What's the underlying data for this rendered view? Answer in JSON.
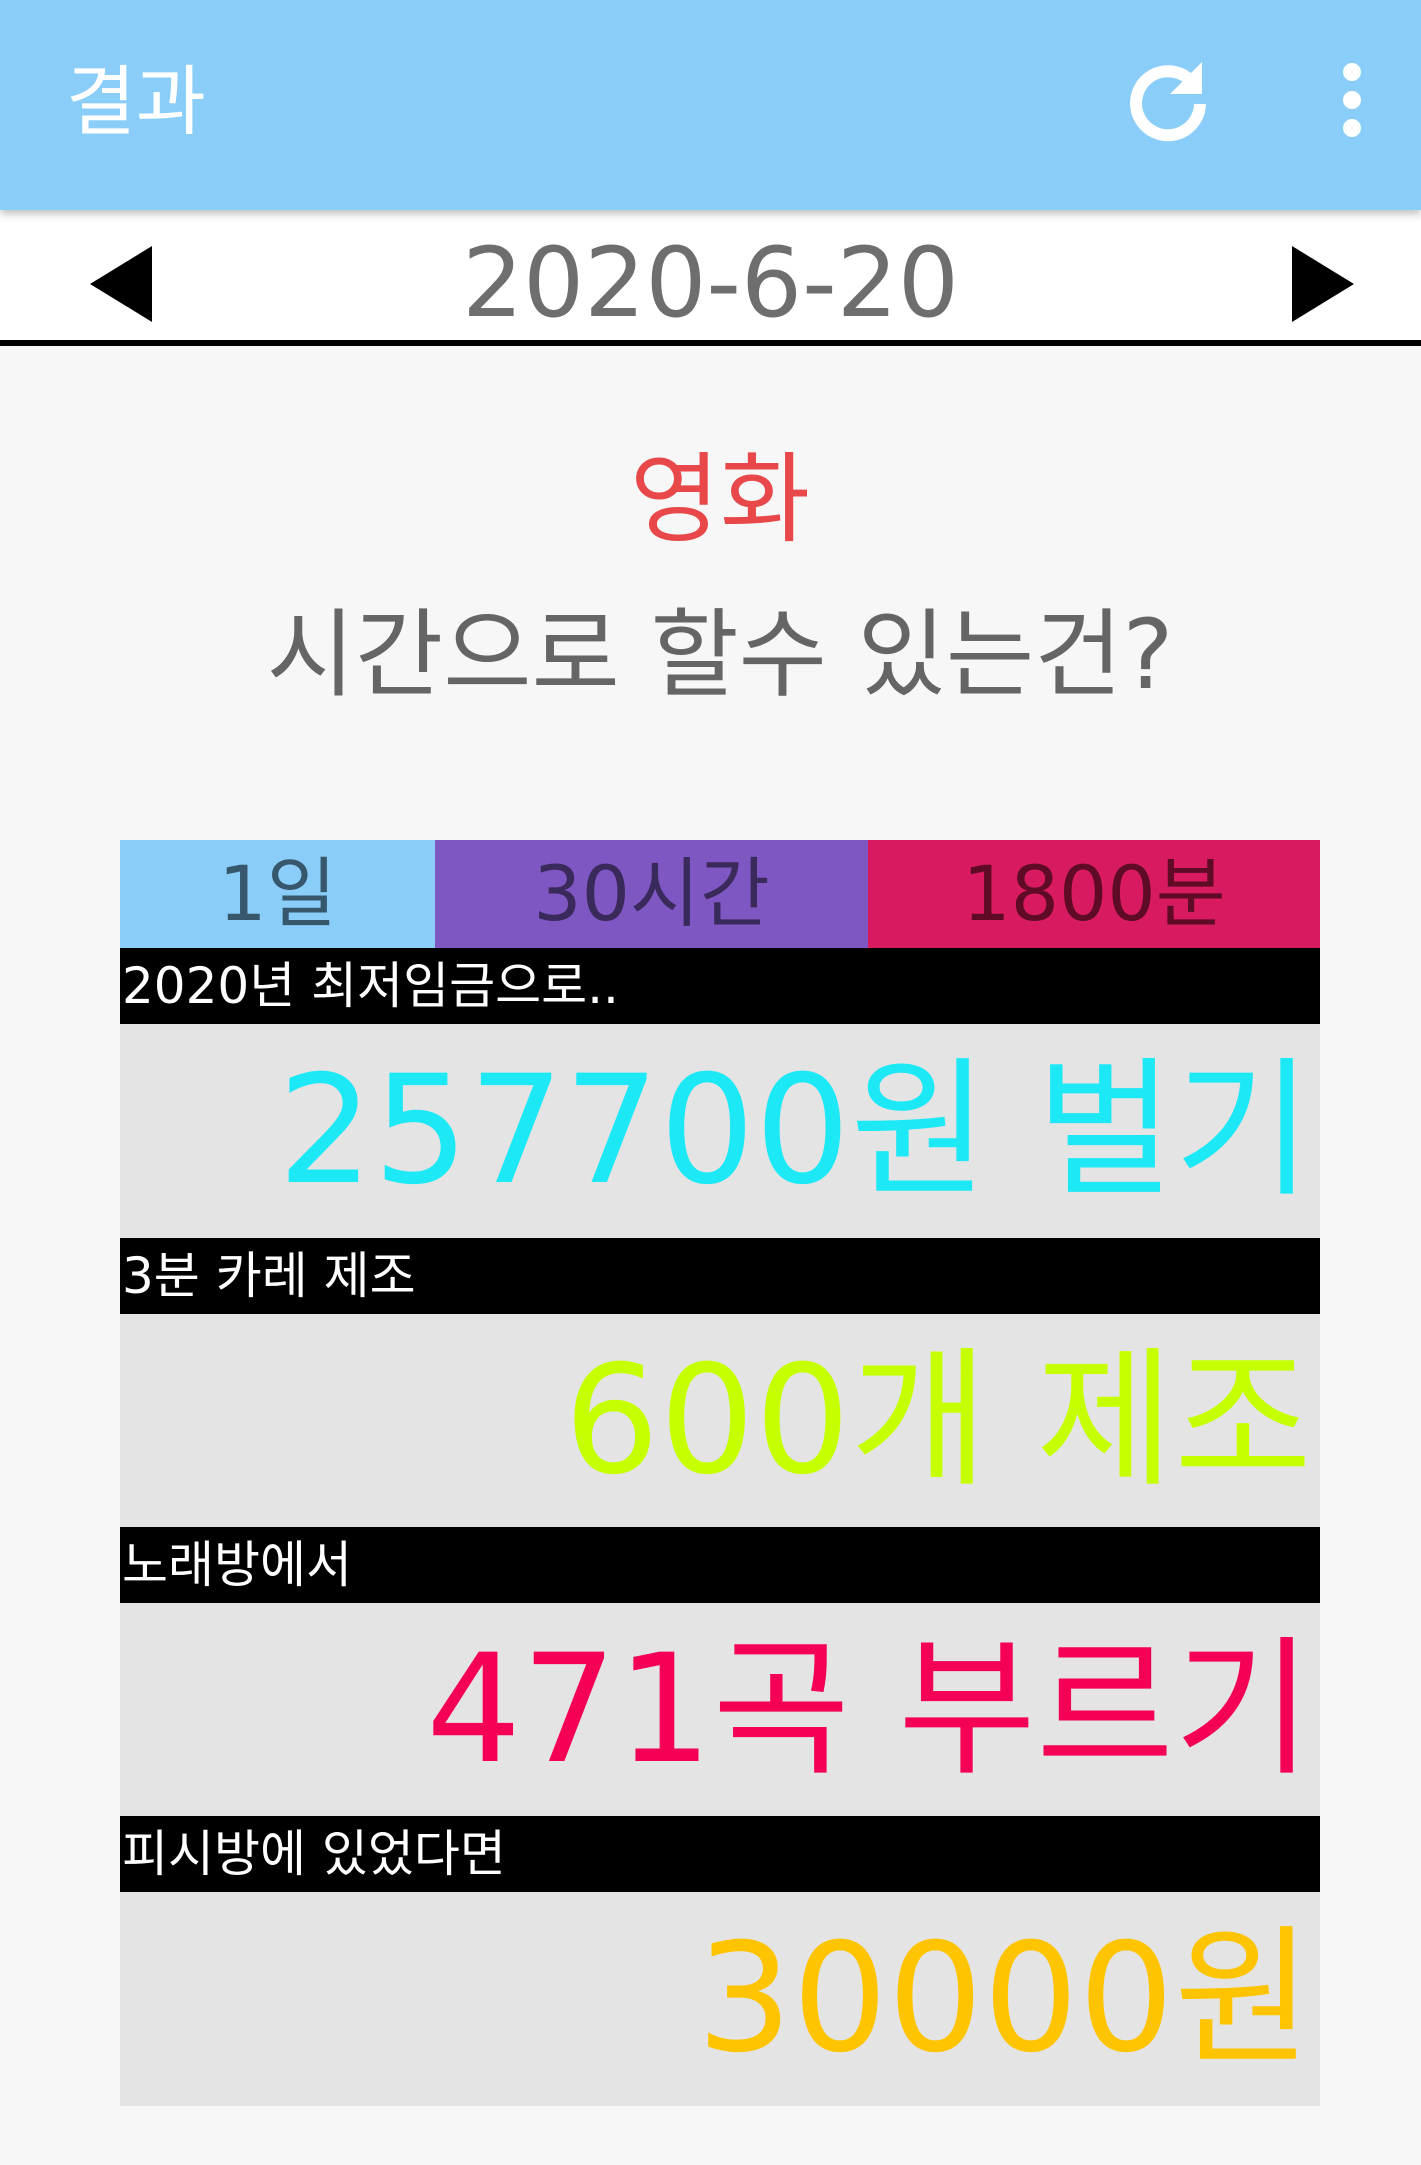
{
  "appbar": {
    "title": "결과",
    "refresh_icon": "refresh-icon",
    "more_icon": "more-vert-icon"
  },
  "datebar": {
    "date": "2020-6-20",
    "prev_icon": "triangle-left-icon",
    "next_icon": "triangle-right-icon"
  },
  "header": {
    "activity": "영화",
    "question": "시간으로 할수 있는건?"
  },
  "time_units": [
    {
      "label": "1일",
      "color": "#8acdf9"
    },
    {
      "label": "30시간",
      "color": "#7e57c2"
    },
    {
      "label": "1800분",
      "color": "#d81b60"
    }
  ],
  "results": [
    {
      "label": "2020년 최저임금으로..",
      "value": "257700원 벌기",
      "color": "#1de9f6"
    },
    {
      "label": "3분 카레 제조",
      "value": "600개 제조",
      "color": "#c6ff00"
    },
    {
      "label": "노래방에서",
      "value": "471곡 부르기",
      "color": "#f50057"
    },
    {
      "label": "피시방에 있었다면",
      "value": "30000원",
      "color": "#ffc400"
    }
  ]
}
